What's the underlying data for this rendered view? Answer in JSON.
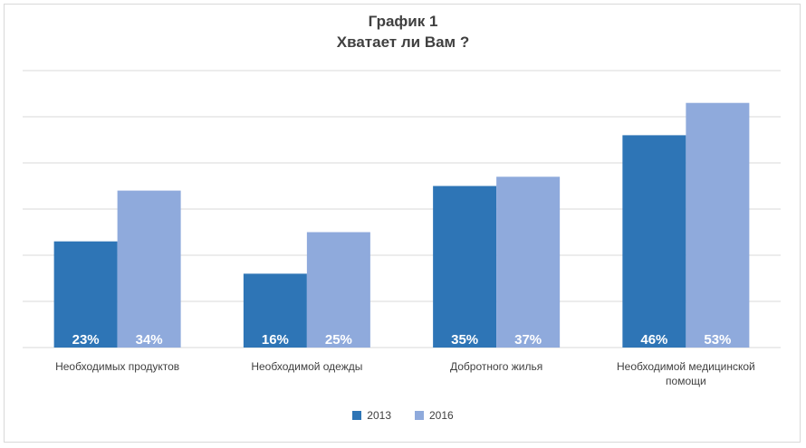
{
  "chart_data": {
    "type": "bar",
    "title": "График 1",
    "subtitle": "Хватает ли Вам ?",
    "categories": [
      [
        "Необходимых продуктов"
      ],
      [
        "Необходимой одежды"
      ],
      [
        "Добротного жилья"
      ],
      [
        "Необходимой медицинской",
        "помощи"
      ]
    ],
    "series": [
      {
        "name": "2013",
        "values": [
          23,
          16,
          35,
          46
        ],
        "labels": [
          "23%",
          "16%",
          "35%",
          "46%"
        ],
        "color": "#2e75b6"
      },
      {
        "name": "2016",
        "values": [
          34,
          25,
          37,
          53
        ],
        "labels": [
          "34%",
          "25%",
          "37%",
          "53%"
        ],
        "color": "#8faadc"
      }
    ],
    "ylim": [
      0,
      60
    ],
    "gridlines": true,
    "y_axis_labels_visible": false,
    "legend_position": "bottom",
    "gridline_color": "#d9d9d9",
    "label_color": "#404040"
  }
}
